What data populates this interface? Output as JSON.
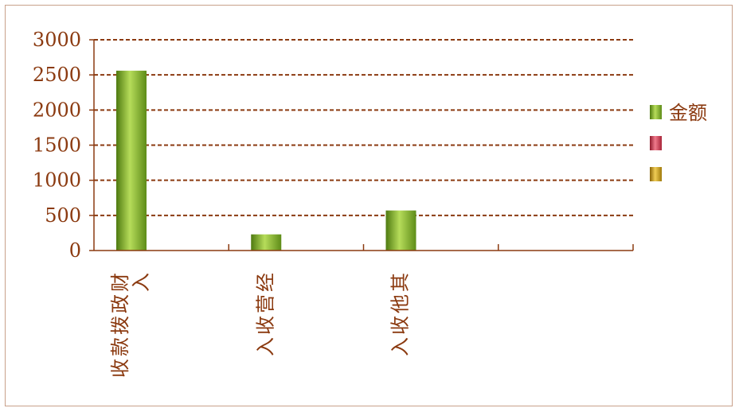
{
  "chart_data": {
    "type": "bar",
    "categories": [
      "财政拨款收入",
      "经营收入",
      "其他收入",
      ""
    ],
    "series": [
      {
        "name": "金额",
        "values": [
          2560,
          230,
          570,
          null
        ],
        "color": "#7aa722"
      },
      {
        "name": "",
        "values": [
          null,
          null,
          null,
          null
        ],
        "color": "#d4364f"
      },
      {
        "name": "",
        "values": [
          null,
          null,
          null,
          null
        ],
        "color": "#c99a10"
      }
    ],
    "title": "",
    "xlabel": "",
    "ylabel": "",
    "ylim": [
      0,
      3000
    ],
    "yticks": [
      0,
      500,
      1000,
      1500,
      2000,
      2500,
      3000
    ],
    "grid": true,
    "legend_position": "right",
    "colors": {
      "axis": "#8b3a10",
      "gridline": "#8b3a10",
      "text": "#8b3a10",
      "frame": "#c8a08a"
    }
  }
}
